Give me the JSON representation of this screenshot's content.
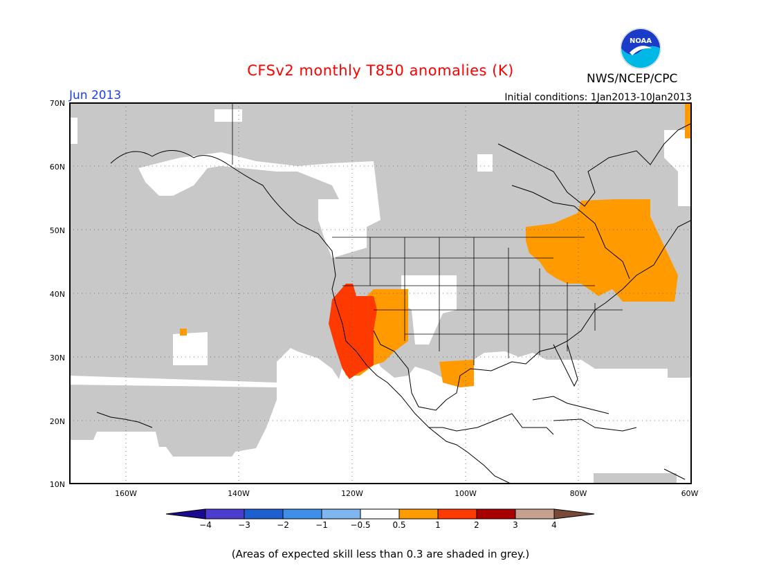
{
  "header": {
    "title": "CFSv2 monthly T850 anomalies (K)",
    "period": "Jun 2013",
    "initial_conditions": "Initial conditions: 1Jan2013-10Jan2013",
    "agency": "NWS/NCEP/CPC",
    "logo_text": "NOAA"
  },
  "map": {
    "lat_labels": [
      "70N",
      "60N",
      "50N",
      "40N",
      "30N",
      "20N",
      "10N"
    ],
    "lon_labels": [
      "160W",
      "140W",
      "120W",
      "100W",
      "80W",
      "60W"
    ],
    "extent": {
      "lon": [
        -170,
        -60
      ],
      "lat": [
        10,
        70
      ]
    }
  },
  "legend": {
    "colors": [
      "#1a0a8c",
      "#4b3ccf",
      "#1e5fd0",
      "#3f8fe8",
      "#7fb6f0",
      "#ffffff",
      "#ff9a00",
      "#ff3a00",
      "#a80000",
      "#c8a090",
      "#7a4a38"
    ],
    "ticks": [
      "−4",
      "−3",
      "−2",
      "−1",
      "−0.5",
      "0.5",
      "1",
      "2",
      "3",
      "4"
    ]
  },
  "colors": {
    "low_skill_grey": "#c8c8c8",
    "anomaly_0_5_to_1": "#ff9a00",
    "anomaly_1_to_2": "#ff3a00"
  },
  "footer": {
    "note": "(Areas of expected skill less than 0.3 are shaded in grey.)"
  }
}
